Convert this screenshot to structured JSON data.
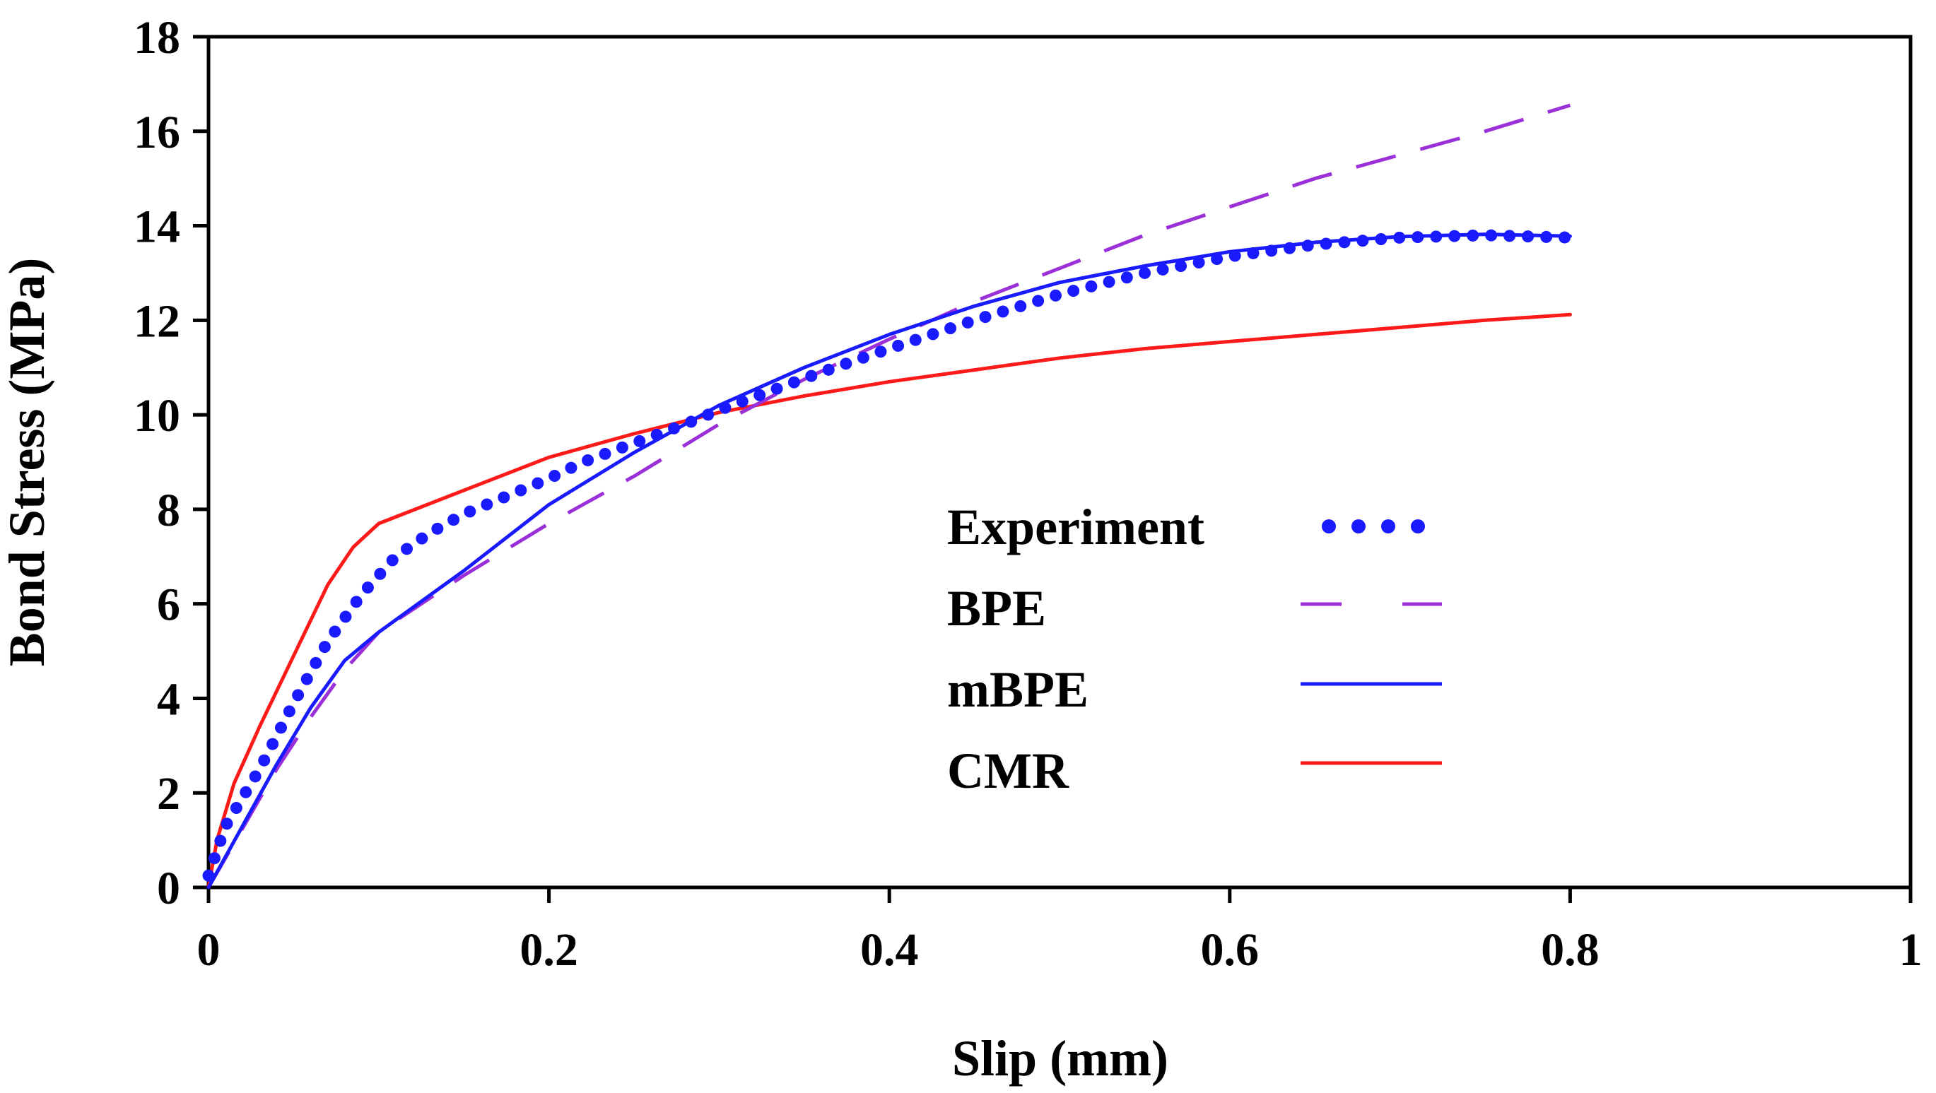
{
  "chart_data": {
    "type": "line",
    "xlabel": "Slip (mm)",
    "ylabel": "Bond Stress (MPa)",
    "xlim": [
      0,
      1
    ],
    "ylim": [
      0,
      18
    ],
    "xticks": [
      0,
      0.2,
      0.4,
      0.6,
      0.8,
      1
    ],
    "xtick_labels": [
      "0",
      "0.2",
      "0.4",
      "0.6",
      "0.8",
      "1"
    ],
    "yticks": [
      0,
      2,
      4,
      6,
      8,
      10,
      12,
      14,
      16,
      18
    ],
    "ytick_labels": [
      "0",
      "2",
      "4",
      "6",
      "8",
      "10",
      "12",
      "14",
      "16",
      "18"
    ],
    "grid": false,
    "legend_position": "center-right",
    "series": [
      {
        "name": "Experiment",
        "style": "dotted",
        "color": "#1a1aff",
        "points": [
          [
            0,
            0.25
          ],
          [
            0.01,
            1.3
          ],
          [
            0.03,
            2.5
          ],
          [
            0.05,
            3.9
          ],
          [
            0.07,
            5.2
          ],
          [
            0.09,
            6.2
          ],
          [
            0.11,
            7.0
          ],
          [
            0.13,
            7.5
          ],
          [
            0.15,
            7.9
          ],
          [
            0.17,
            8.2
          ],
          [
            0.2,
            8.65
          ],
          [
            0.22,
            9.0
          ],
          [
            0.25,
            9.4
          ],
          [
            0.28,
            9.8
          ],
          [
            0.3,
            10.1
          ],
          [
            0.33,
            10.5
          ],
          [
            0.36,
            10.9
          ],
          [
            0.4,
            11.4
          ],
          [
            0.45,
            12.0
          ],
          [
            0.5,
            12.55
          ],
          [
            0.55,
            13.0
          ],
          [
            0.6,
            13.35
          ],
          [
            0.65,
            13.6
          ],
          [
            0.7,
            13.75
          ],
          [
            0.75,
            13.8
          ],
          [
            0.8,
            13.75
          ]
        ]
      },
      {
        "name": "BPE",
        "style": "dashed",
        "color": "#9b30d9",
        "points": [
          [
            0,
            0
          ],
          [
            0.02,
            1.25
          ],
          [
            0.04,
            2.5
          ],
          [
            0.06,
            3.6
          ],
          [
            0.08,
            4.6
          ],
          [
            0.1,
            5.4
          ],
          [
            0.15,
            6.6
          ],
          [
            0.2,
            7.7
          ],
          [
            0.25,
            8.7
          ],
          [
            0.3,
            9.8
          ],
          [
            0.35,
            10.75
          ],
          [
            0.4,
            11.6
          ],
          [
            0.45,
            12.4
          ],
          [
            0.5,
            13.1
          ],
          [
            0.55,
            13.8
          ],
          [
            0.6,
            14.4
          ],
          [
            0.65,
            15.0
          ],
          [
            0.7,
            15.5
          ],
          [
            0.75,
            16.0
          ],
          [
            0.8,
            16.55
          ]
        ]
      },
      {
        "name": "mBPE",
        "style": "solid",
        "color": "#1a1aff",
        "points": [
          [
            0,
            0
          ],
          [
            0.02,
            1.3
          ],
          [
            0.04,
            2.6
          ],
          [
            0.06,
            3.8
          ],
          [
            0.08,
            4.8
          ],
          [
            0.1,
            5.4
          ],
          [
            0.15,
            6.7
          ],
          [
            0.2,
            8.1
          ],
          [
            0.25,
            9.2
          ],
          [
            0.3,
            10.2
          ],
          [
            0.35,
            11.0
          ],
          [
            0.4,
            11.7
          ],
          [
            0.45,
            12.3
          ],
          [
            0.5,
            12.8
          ],
          [
            0.55,
            13.15
          ],
          [
            0.6,
            13.45
          ],
          [
            0.65,
            13.65
          ],
          [
            0.7,
            13.77
          ],
          [
            0.75,
            13.82
          ],
          [
            0.8,
            13.78
          ]
        ]
      },
      {
        "name": "CMR",
        "style": "solid",
        "color": "#ff1a1a",
        "points": [
          [
            0,
            0
          ],
          [
            0.005,
            1.0
          ],
          [
            0.015,
            2.2
          ],
          [
            0.03,
            3.4
          ],
          [
            0.05,
            4.9
          ],
          [
            0.07,
            6.4
          ],
          [
            0.085,
            7.2
          ],
          [
            0.1,
            7.7
          ],
          [
            0.15,
            8.4
          ],
          [
            0.2,
            9.1
          ],
          [
            0.25,
            9.6
          ],
          [
            0.3,
            10.05
          ],
          [
            0.35,
            10.4
          ],
          [
            0.4,
            10.7
          ],
          [
            0.45,
            10.95
          ],
          [
            0.5,
            11.2
          ],
          [
            0.55,
            11.4
          ],
          [
            0.6,
            11.55
          ],
          [
            0.65,
            11.7
          ],
          [
            0.7,
            11.85
          ],
          [
            0.75,
            12.0
          ],
          [
            0.8,
            12.12
          ]
        ]
      }
    ]
  }
}
